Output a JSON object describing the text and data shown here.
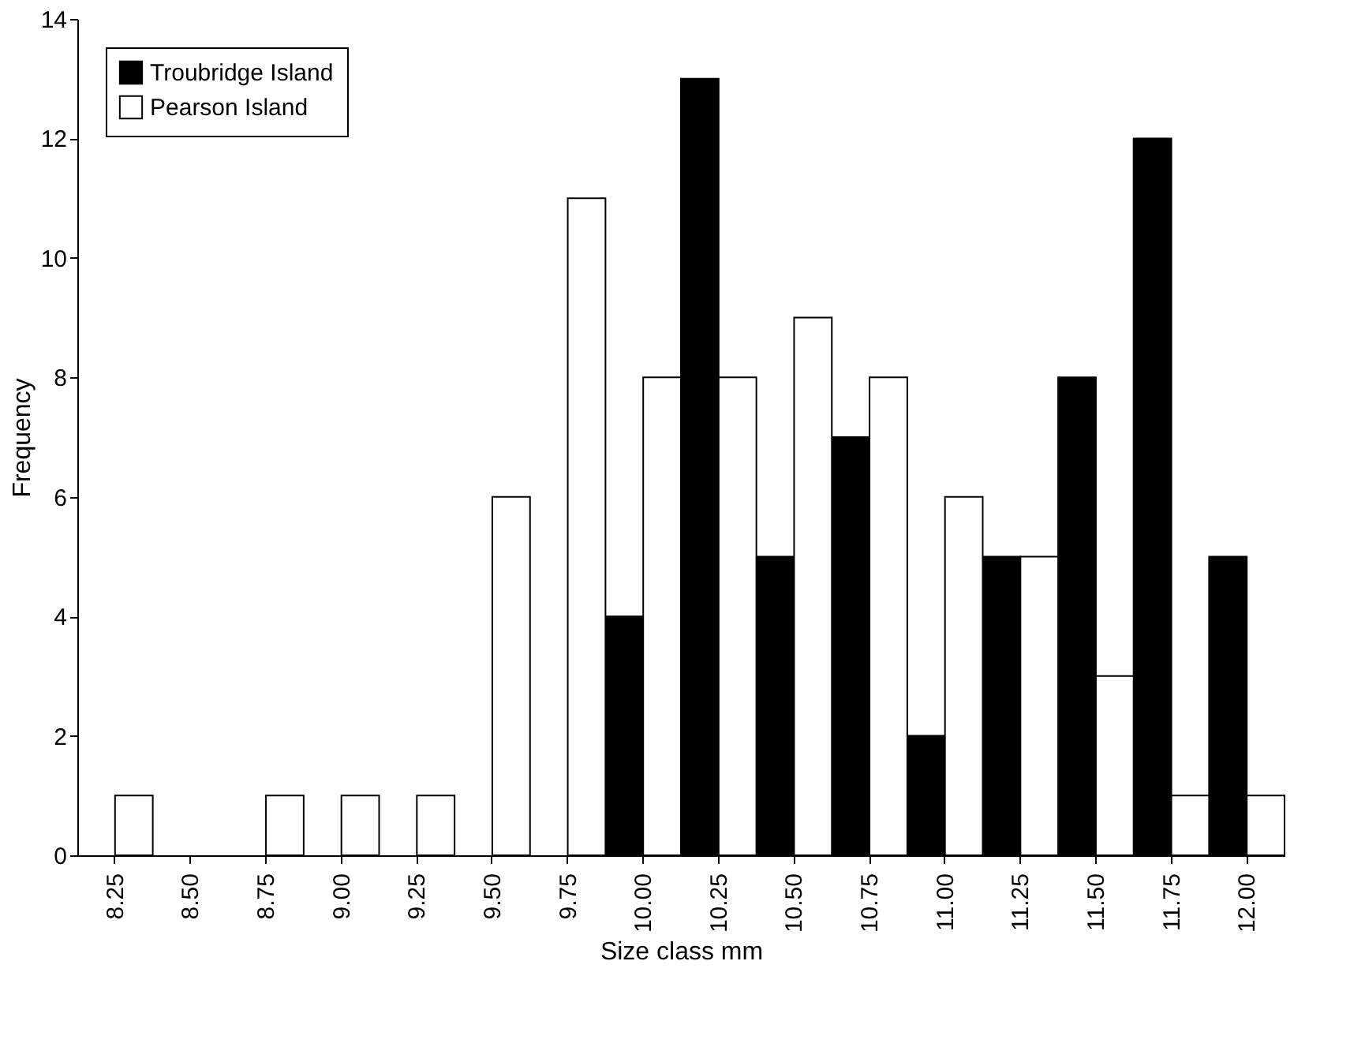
{
  "chart_data": {
    "type": "bar",
    "xlabel": "Size class mm",
    "ylabel": "Frequency",
    "categories": [
      "8.25",
      "8.50",
      "8.75",
      "9.00",
      "9.25",
      "9.50",
      "9.75",
      "10.00",
      "10.25",
      "10.50",
      "10.75",
      "11.00",
      "11.25",
      "11.50",
      "11.75",
      "12.00"
    ],
    "series": [
      {
        "name": "Troubridge Island",
        "color": "#000000",
        "values": [
          0,
          0,
          0,
          0,
          0,
          0,
          0,
          4,
          13,
          5,
          7,
          2,
          5,
          8,
          12,
          5
        ]
      },
      {
        "name": "Pearson Island",
        "color": "#ffffff",
        "values": [
          1,
          0,
          1,
          1,
          1,
          6,
          11,
          8,
          8,
          9,
          8,
          6,
          5,
          3,
          1,
          1
        ]
      }
    ],
    "ylim": [
      0,
      14
    ],
    "yticks": [
      0,
      2,
      4,
      6,
      8,
      10,
      12,
      14
    ],
    "grid": false,
    "legend": "top left"
  }
}
